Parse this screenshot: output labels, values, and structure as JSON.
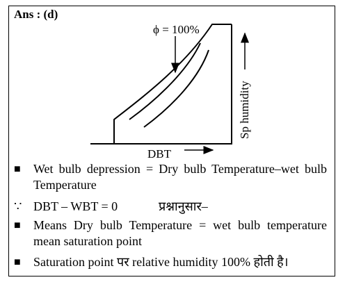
{
  "answer": "Ans : (d)",
  "diagram": {
    "curve_label": "ϕ = 100%",
    "x_axis_label": "DBT",
    "y_axis_label": "Sp humidity"
  },
  "points": [
    {
      "marker": "■",
      "text": "Wet bulb depression = Dry bulb Temperature–wet bulb Temperature"
    },
    {
      "marker": "∵",
      "text": "DBT – WBT = 0",
      "note": "प्रश्नानुसार–"
    },
    {
      "marker": "■",
      "text": "Means Dry bulb Temperature = wet bulb temperature mean saturation point"
    },
    {
      "marker": "■",
      "text": "Saturation point पर relative humidity 100% होती है।"
    }
  ]
}
